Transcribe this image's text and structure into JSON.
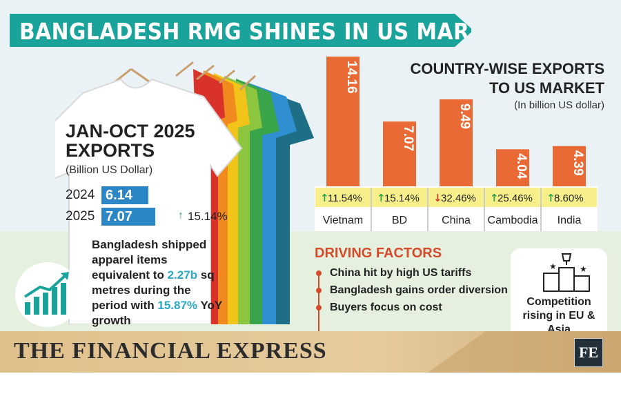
{
  "title": "BANGLADESH RMG SHINES IN US MARKET",
  "left_panel": {
    "heading_line1": "JAN-OCT 2025",
    "heading_line2": "EXPORTS",
    "unit": "(Billion US Dollar)",
    "rows": [
      {
        "year": "2024",
        "value": 6.14,
        "value_label": "6.14"
      },
      {
        "year": "2025",
        "value": 7.07,
        "value_label": "7.07"
      }
    ],
    "growth": "15.14%",
    "para_part1": "Bangladesh shipped apparel items equivalent to ",
    "para_hl1": "2.27b",
    "para_part2": " sq metres during the period with ",
    "para_hl2": "15.87%",
    "para_part3": " YoY growth"
  },
  "chart_data": {
    "type": "bar",
    "title": "COUNTRY-WISE EXPORTS TO US MARKET",
    "title_line1": "COUNTRY-WISE EXPORTS",
    "title_line2": "TO US MARKET",
    "unit": "(In billion US dollar)",
    "categories": [
      "Vietnam",
      "BD",
      "China",
      "Cambodia",
      "India"
    ],
    "values": [
      14.16,
      7.07,
      9.49,
      4.04,
      4.39
    ],
    "value_labels": [
      "14.16",
      "7.07",
      "9.49",
      "4.04",
      "4.39"
    ],
    "changes": [
      "11.54%",
      "15.14%",
      "32.46%",
      "25.46%",
      "8.60%"
    ],
    "change_direction": [
      "up",
      "up",
      "down",
      "up",
      "up"
    ],
    "ylim": [
      0,
      14.16
    ],
    "bar_color": "#ea6a35",
    "up_color": "#2aa24a",
    "down_color": "#d33a2a",
    "change_bg": "#f7f08a"
  },
  "driving_factors": {
    "title": "DRIVING FACTORS",
    "items": [
      "China hit by high US tariffs",
      "Bangladesh gains order diversion",
      "Buyers focus on cost"
    ]
  },
  "competition": {
    "text": "Competition rising in EU & Asia",
    "icon": "podium-trophy-icon"
  },
  "footer": {
    "brand": "THE FINANCIAL EXPRESS",
    "logo": "FE"
  },
  "colors": {
    "title_banner": "#1aa39a",
    "accent_blue": "#2b86c6",
    "accent_orange": "#ea6a35",
    "factor_red": "#d54a2a"
  }
}
